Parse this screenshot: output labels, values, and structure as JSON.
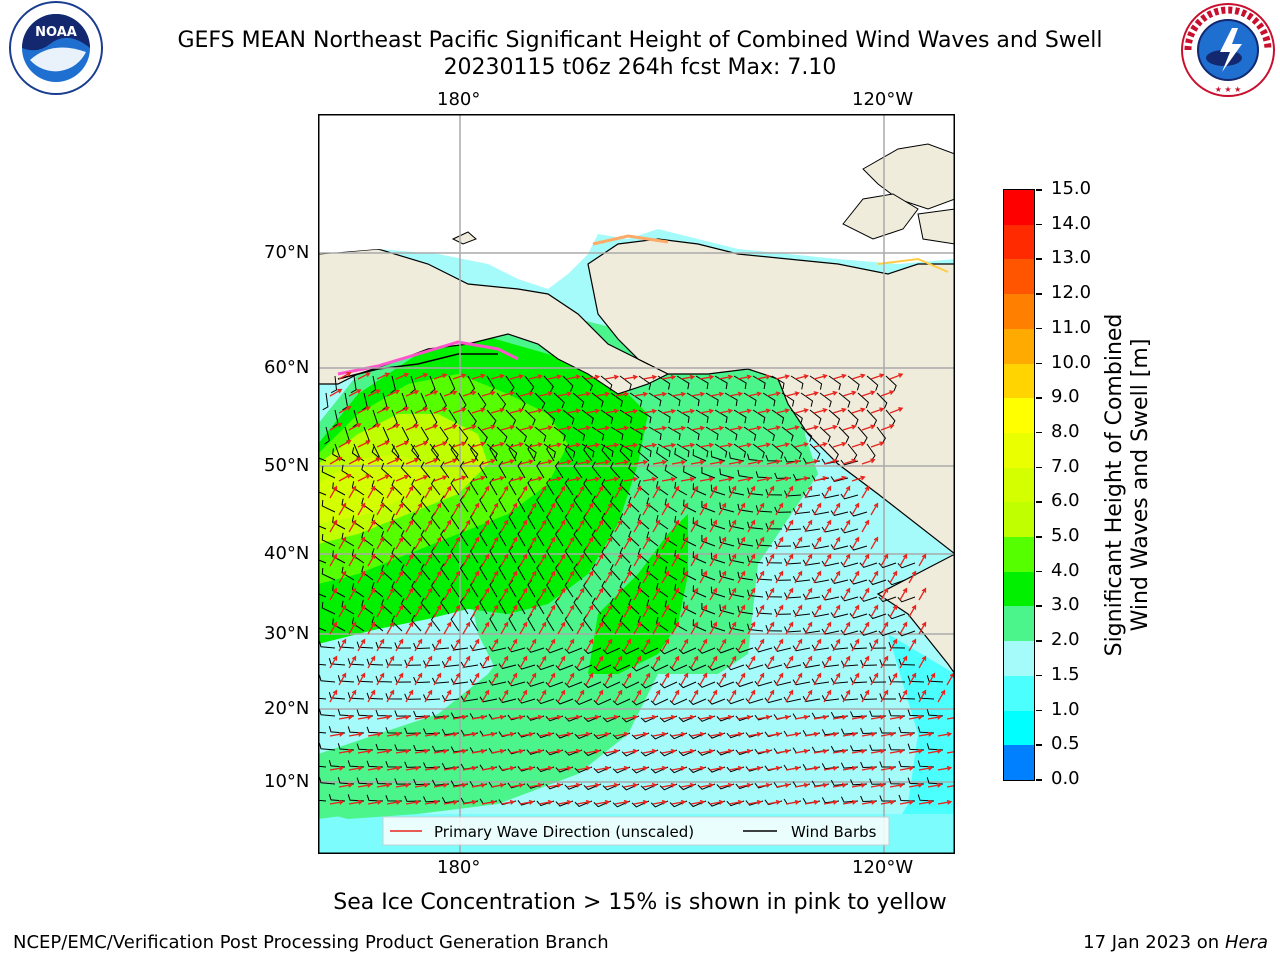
{
  "title": {
    "line1": "GEFS MEAN Northeast Pacific Significant Height of Combined Wind Waves and Swell",
    "line2": "20230115 t06z 264h fcst   Max: 7.10"
  },
  "logos": {
    "left_text": "NOAA",
    "left_ring": "NATIONAL OCEANIC AND ATMOSPHERIC ADMINISTRATION · U.S. DEPARTMENT OF COMMERCE",
    "right_ring": "NATIONAL WEATHER SERVICE"
  },
  "map": {
    "lon_labels_top": [
      "180°",
      "120°W"
    ],
    "lon_labels_bottom": [
      "180°",
      "120°W"
    ],
    "lat_labels": [
      "70°N",
      "60°N",
      "50°N",
      "40°N",
      "30°N",
      "20°N",
      "10°N"
    ],
    "legend": {
      "wave_label": "Primary Wave Direction (unscaled)",
      "wind_label": "Wind Barbs",
      "wave_color": "#e8231c",
      "wind_color": "#000000"
    },
    "land_color": "#efecdc",
    "ocean_bg": "#a5fafa"
  },
  "colorbar": {
    "label": "Significant Height of Combined\nWind Waves and Swell [m]",
    "ticks": [
      "15.0",
      "14.0",
      "13.0",
      "12.0",
      "11.0",
      "10.0",
      "9.0",
      "8.0",
      "7.0",
      "6.0",
      "5.0",
      "4.0",
      "3.0",
      "2.0",
      "1.5",
      "1.0",
      "0.5",
      "0.0"
    ],
    "colors": [
      "#ff0000",
      "#ff2a00",
      "#ff5500",
      "#ff8000",
      "#ffaa00",
      "#ffd400",
      "#ffff00",
      "#eaff00",
      "#d4ff00",
      "#bfff00",
      "#55ff00",
      "#00f000",
      "#4cf58c",
      "#a5fafa",
      "#4cffff",
      "#00ffff",
      "#0080ff",
      "#0000ff"
    ]
  },
  "caption": "Sea Ice Concentration > 15% is shown in pink to yellow",
  "footer": {
    "left": "NCEP/EMC/Verification Post Processing Product Generation Branch",
    "right_date": "17 Jan 2023 on ",
    "right_host": "Hera"
  }
}
